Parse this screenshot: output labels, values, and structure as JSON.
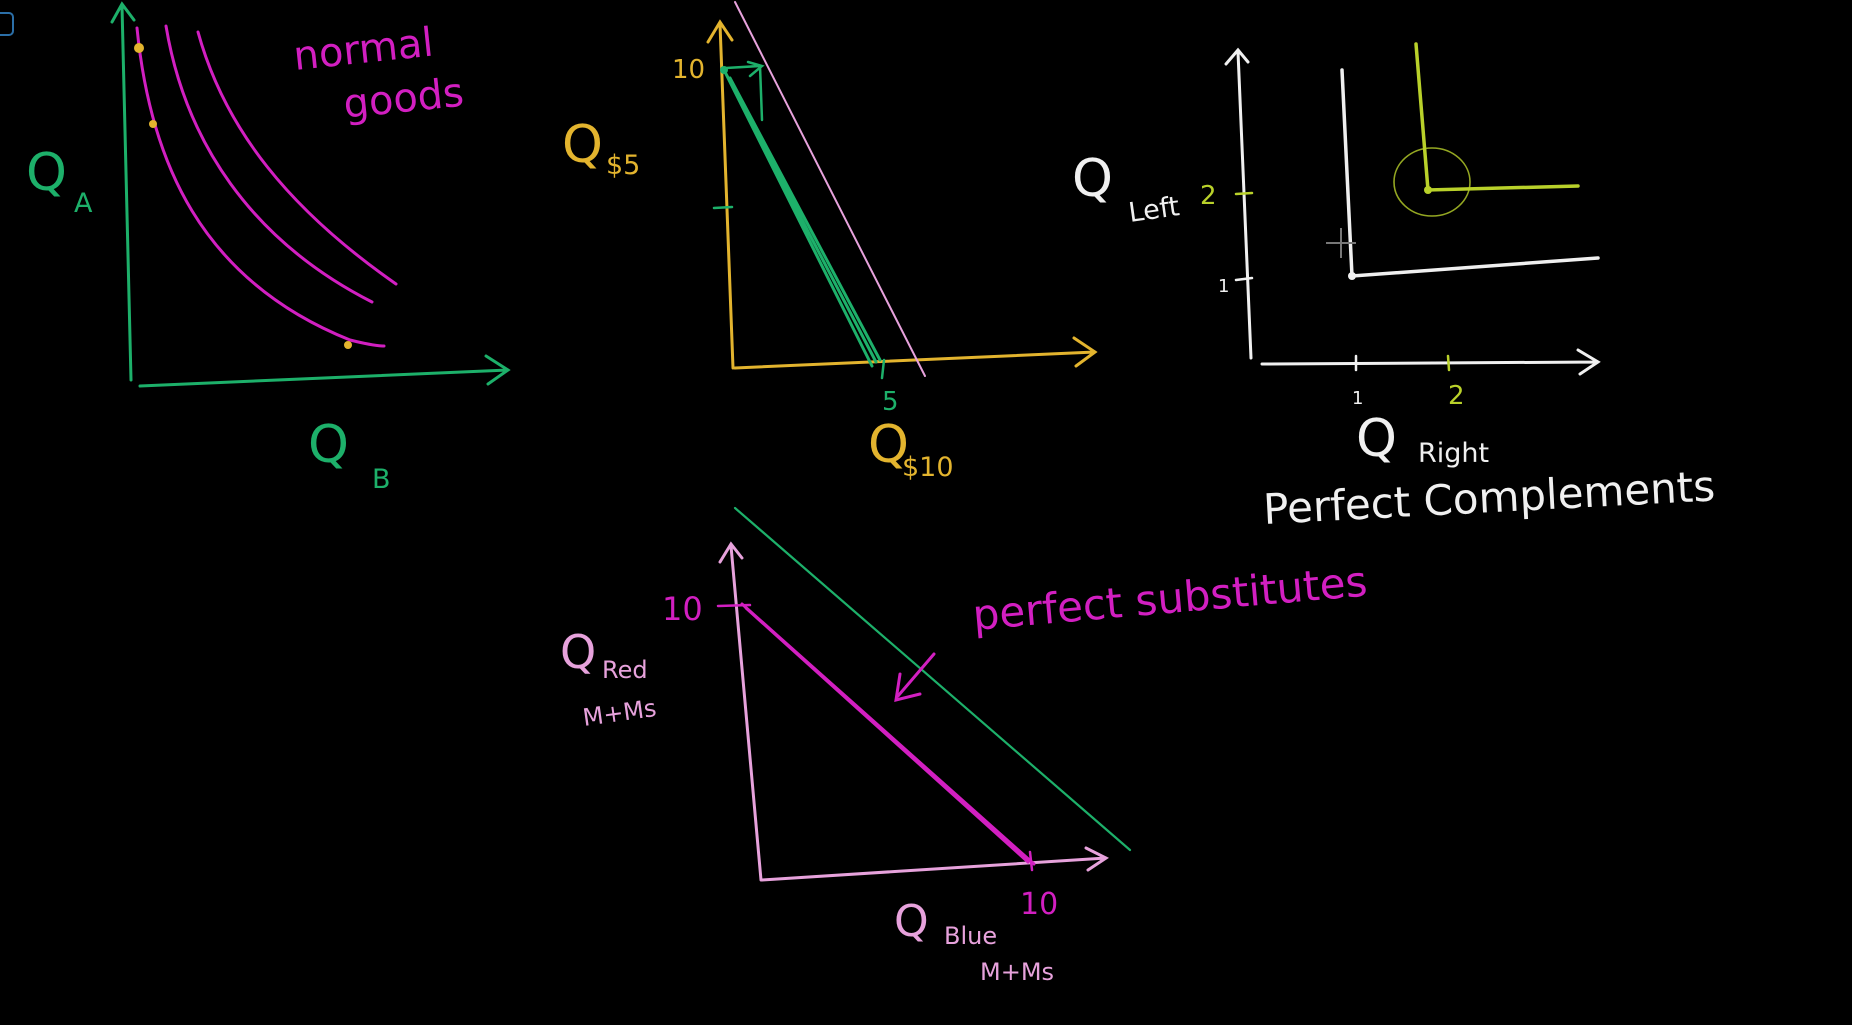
{
  "colors": {
    "background": "#000000",
    "green": "#1db06a",
    "magenta": "#d21fc1",
    "yellow": "#e3b42e",
    "white": "#f0f0f0",
    "pink": "#e7a2dc",
    "lime": "#b9d12a"
  },
  "normal_goods": {
    "note_line1": "normal",
    "note_line2": "goods",
    "y_label": "Q",
    "y_label_sub": "A",
    "x_label": "Q",
    "x_label_sub": "B"
  },
  "price_budget": {
    "y_tick": "10",
    "x_tick": "5",
    "y_label": "Q",
    "y_label_sub": "$5",
    "x_label": "Q",
    "x_label_sub": "$10"
  },
  "perfect_complements": {
    "y_label": "Q",
    "y_label_sub": "Left",
    "x_label": "Q",
    "x_label_sub": "Right",
    "y_ticks": [
      "2",
      "1"
    ],
    "x_ticks": [
      "1",
      "2"
    ],
    "caption": "Perfect Complements"
  },
  "perfect_substitutes": {
    "note": "perfect substitutes",
    "y_tick": "10",
    "x_tick": "10",
    "y_label": "Q",
    "y_label_sub": "Red",
    "y_label_sub2": "M+Ms",
    "x_label": "Q",
    "x_label_sub": "Blue",
    "x_label_sub2": "M+Ms"
  }
}
